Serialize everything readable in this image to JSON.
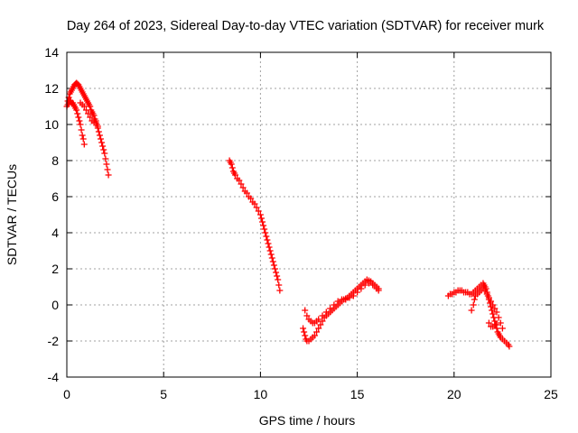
{
  "chart_data": {
    "type": "scatter",
    "title": "Day 264 of 2023, Sidereal Day-to-day VTEC variation (SDTVAR) for receiver murk",
    "xlabel": "GPS time / hours",
    "ylabel": "SDTVAR / TECUs",
    "xlim": [
      0,
      25
    ],
    "ylim": [
      -4,
      14
    ],
    "xticks": [
      0,
      5,
      10,
      15,
      20,
      25
    ],
    "yticks": [
      -4,
      -2,
      0,
      2,
      4,
      6,
      8,
      10,
      12,
      14
    ],
    "grid": true,
    "marker": "plus",
    "color": "#ff0000",
    "series": [
      {
        "points": [
          [
            0.0,
            11.0
          ],
          [
            0.05,
            11.3
          ],
          [
            0.1,
            11.5
          ],
          [
            0.15,
            11.7
          ],
          [
            0.2,
            11.8
          ],
          [
            0.25,
            11.9
          ],
          [
            0.3,
            12.0
          ],
          [
            0.35,
            12.1
          ],
          [
            0.4,
            12.2
          ],
          [
            0.45,
            12.25
          ],
          [
            0.5,
            12.3
          ],
          [
            0.55,
            12.25
          ],
          [
            0.6,
            12.2
          ],
          [
            0.65,
            12.1
          ],
          [
            0.7,
            12.0
          ],
          [
            0.75,
            11.9
          ],
          [
            0.8,
            11.8
          ],
          [
            0.85,
            11.7
          ],
          [
            0.9,
            11.6
          ],
          [
            0.95,
            11.5
          ],
          [
            1.0,
            11.4
          ],
          [
            1.05,
            11.3
          ],
          [
            1.1,
            11.2
          ],
          [
            1.15,
            11.1
          ],
          [
            1.2,
            11.0
          ],
          [
            1.25,
            10.8
          ],
          [
            1.3,
            10.7
          ],
          [
            1.35,
            10.6
          ],
          [
            1.4,
            10.5
          ],
          [
            1.45,
            10.3
          ],
          [
            1.5,
            10.2
          ],
          [
            1.55,
            10.0
          ],
          [
            1.6,
            9.8
          ],
          [
            1.65,
            9.6
          ],
          [
            1.7,
            9.4
          ],
          [
            1.75,
            9.2
          ],
          [
            1.8,
            9.0
          ],
          [
            1.85,
            8.8
          ],
          [
            1.9,
            8.6
          ],
          [
            1.95,
            8.4
          ],
          [
            2.0,
            8.1
          ],
          [
            2.05,
            7.8
          ],
          [
            2.1,
            7.5
          ],
          [
            2.15,
            7.2
          ],
          [
            0.05,
            11.1
          ],
          [
            0.1,
            11.2
          ],
          [
            0.15,
            11.3
          ],
          [
            0.2,
            11.3
          ],
          [
            0.25,
            11.2
          ],
          [
            0.3,
            11.2
          ],
          [
            0.35,
            11.1
          ],
          [
            0.4,
            11.0
          ],
          [
            0.45,
            10.9
          ],
          [
            0.5,
            10.8
          ],
          [
            0.55,
            10.6
          ],
          [
            0.6,
            10.4
          ],
          [
            0.65,
            10.2
          ],
          [
            0.7,
            10.0
          ],
          [
            0.75,
            9.7
          ],
          [
            0.8,
            9.4
          ],
          [
            0.85,
            9.2
          ],
          [
            0.9,
            8.9
          ],
          [
            0.7,
            11.2
          ],
          [
            0.8,
            11.1
          ],
          [
            0.9,
            11.0
          ],
          [
            1.0,
            10.8
          ],
          [
            1.1,
            10.6
          ],
          [
            1.2,
            10.4
          ],
          [
            1.3,
            10.2
          ],
          [
            1.4,
            10.1
          ],
          [
            1.5,
            10.1
          ],
          [
            1.6,
            9.9
          ]
        ]
      },
      {
        "points": [
          [
            8.4,
            8.0
          ],
          [
            8.45,
            7.9
          ],
          [
            8.5,
            7.8
          ],
          [
            8.55,
            7.6
          ],
          [
            8.6,
            7.4
          ],
          [
            8.65,
            7.3
          ],
          [
            8.7,
            7.2
          ],
          [
            8.8,
            7.0
          ],
          [
            8.9,
            6.9
          ],
          [
            9.0,
            6.7
          ],
          [
            9.1,
            6.5
          ],
          [
            9.2,
            6.3
          ],
          [
            9.3,
            6.2
          ],
          [
            9.4,
            6.0
          ],
          [
            9.5,
            5.9
          ],
          [
            9.6,
            5.7
          ],
          [
            9.7,
            5.6
          ],
          [
            9.8,
            5.4
          ],
          [
            9.9,
            5.2
          ],
          [
            10.0,
            5.0
          ],
          [
            10.05,
            4.8
          ],
          [
            10.1,
            4.6
          ],
          [
            10.15,
            4.4
          ],
          [
            10.2,
            4.2
          ],
          [
            10.25,
            4.0
          ],
          [
            10.3,
            3.8
          ],
          [
            10.35,
            3.6
          ],
          [
            10.4,
            3.4
          ],
          [
            10.45,
            3.2
          ],
          [
            10.5,
            3.0
          ],
          [
            10.55,
            2.8
          ],
          [
            10.6,
            2.6
          ],
          [
            10.65,
            2.4
          ],
          [
            10.7,
            2.2
          ],
          [
            10.75,
            2.0
          ],
          [
            10.8,
            1.8
          ],
          [
            10.85,
            1.6
          ],
          [
            10.9,
            1.4
          ],
          [
            10.95,
            1.1
          ],
          [
            11.0,
            0.8
          ]
        ]
      },
      {
        "points": [
          [
            12.2,
            -1.3
          ],
          [
            12.25,
            -1.5
          ],
          [
            12.3,
            -1.7
          ],
          [
            12.35,
            -1.9
          ],
          [
            12.4,
            -2.0
          ],
          [
            12.5,
            -2.0
          ],
          [
            12.6,
            -1.9
          ],
          [
            12.7,
            -1.8
          ],
          [
            12.8,
            -1.7
          ],
          [
            12.9,
            -1.5
          ],
          [
            13.0,
            -1.3
          ],
          [
            13.1,
            -1.1
          ],
          [
            13.2,
            -0.9
          ],
          [
            13.3,
            -0.7
          ],
          [
            13.4,
            -0.6
          ],
          [
            13.5,
            -0.5
          ],
          [
            13.6,
            -0.4
          ],
          [
            13.7,
            -0.3
          ],
          [
            13.8,
            -0.2
          ],
          [
            13.9,
            -0.1
          ],
          [
            14.0,
            0.0
          ],
          [
            14.1,
            0.1
          ],
          [
            14.2,
            0.2
          ],
          [
            14.3,
            0.3
          ],
          [
            14.4,
            0.35
          ],
          [
            14.5,
            0.4
          ],
          [
            14.6,
            0.5
          ],
          [
            14.7,
            0.6
          ],
          [
            14.8,
            0.7
          ],
          [
            14.9,
            0.8
          ],
          [
            15.0,
            0.9
          ],
          [
            15.1,
            1.0
          ],
          [
            15.2,
            1.1
          ],
          [
            15.3,
            1.2
          ],
          [
            15.4,
            1.3
          ],
          [
            15.5,
            1.4
          ],
          [
            15.6,
            1.35
          ],
          [
            15.7,
            1.3
          ],
          [
            15.8,
            1.2
          ],
          [
            15.9,
            1.1
          ],
          [
            16.0,
            1.0
          ],
          [
            16.1,
            0.9
          ],
          [
            12.3,
            -0.3
          ],
          [
            12.4,
            -0.6
          ],
          [
            12.5,
            -0.8
          ],
          [
            12.6,
            -0.9
          ],
          [
            12.7,
            -1.0
          ],
          [
            12.8,
            -1.0
          ],
          [
            12.9,
            -0.9
          ],
          [
            13.0,
            -0.8
          ],
          [
            13.2,
            -0.6
          ],
          [
            13.4,
            -0.4
          ],
          [
            13.6,
            -0.2
          ],
          [
            13.8,
            0.0
          ],
          [
            14.0,
            0.2
          ],
          [
            14.2,
            0.3
          ],
          [
            14.4,
            0.3
          ],
          [
            14.6,
            0.4
          ],
          [
            14.8,
            0.5
          ],
          [
            15.0,
            0.7
          ],
          [
            15.2,
            0.9
          ],
          [
            15.4,
            1.1
          ],
          [
            15.6,
            1.2
          ],
          [
            15.8,
            1.1
          ],
          [
            16.0,
            0.9
          ],
          [
            16.1,
            0.8
          ]
        ]
      },
      {
        "points": [
          [
            19.7,
            0.5
          ],
          [
            19.8,
            0.6
          ],
          [
            19.9,
            0.6
          ],
          [
            20.0,
            0.7
          ],
          [
            20.1,
            0.7
          ],
          [
            20.2,
            0.8
          ],
          [
            20.3,
            0.8
          ],
          [
            20.4,
            0.8
          ],
          [
            20.5,
            0.7
          ],
          [
            20.6,
            0.7
          ],
          [
            20.7,
            0.7
          ],
          [
            20.8,
            0.6
          ],
          [
            20.9,
            0.6
          ],
          [
            21.0,
            0.7
          ],
          [
            21.1,
            0.8
          ],
          [
            21.2,
            0.9
          ],
          [
            21.3,
            1.0
          ],
          [
            21.4,
            1.1
          ],
          [
            21.5,
            1.2
          ],
          [
            21.55,
            1.1
          ],
          [
            21.6,
            1.0
          ],
          [
            21.65,
            0.9
          ],
          [
            21.7,
            0.7
          ],
          [
            21.75,
            0.5
          ],
          [
            21.8,
            0.3
          ],
          [
            21.85,
            0.1
          ],
          [
            21.9,
            -0.1
          ],
          [
            21.95,
            -0.3
          ],
          [
            22.0,
            -0.5
          ],
          [
            22.05,
            -0.7
          ],
          [
            22.1,
            -0.9
          ],
          [
            22.15,
            -1.1
          ],
          [
            22.2,
            -1.3
          ],
          [
            22.25,
            -1.5
          ],
          [
            22.3,
            -1.6
          ],
          [
            22.35,
            -1.7
          ],
          [
            22.4,
            -1.8
          ],
          [
            22.5,
            -1.9
          ],
          [
            22.6,
            -2.0
          ],
          [
            22.7,
            -2.1
          ],
          [
            22.8,
            -2.2
          ],
          [
            22.85,
            -2.3
          ],
          [
            20.9,
            -0.3
          ],
          [
            21.0,
            0.0
          ],
          [
            21.05,
            0.3
          ],
          [
            21.1,
            0.5
          ],
          [
            21.2,
            0.6
          ],
          [
            21.3,
            0.7
          ],
          [
            21.4,
            0.8
          ],
          [
            21.5,
            0.9
          ],
          [
            21.6,
            0.8
          ],
          [
            21.7,
            0.6
          ],
          [
            21.8,
            0.4
          ],
          [
            21.9,
            0.2
          ],
          [
            22.0,
            0.0
          ],
          [
            22.1,
            -0.2
          ],
          [
            22.2,
            -0.4
          ],
          [
            22.3,
            -0.7
          ],
          [
            22.4,
            -1.0
          ],
          [
            22.5,
            -1.3
          ],
          [
            21.8,
            -1.0
          ],
          [
            21.9,
            -1.2
          ],
          [
            22.0,
            -1.2
          ],
          [
            22.1,
            -1.1
          ],
          [
            22.2,
            -1.1
          ]
        ]
      }
    ]
  }
}
